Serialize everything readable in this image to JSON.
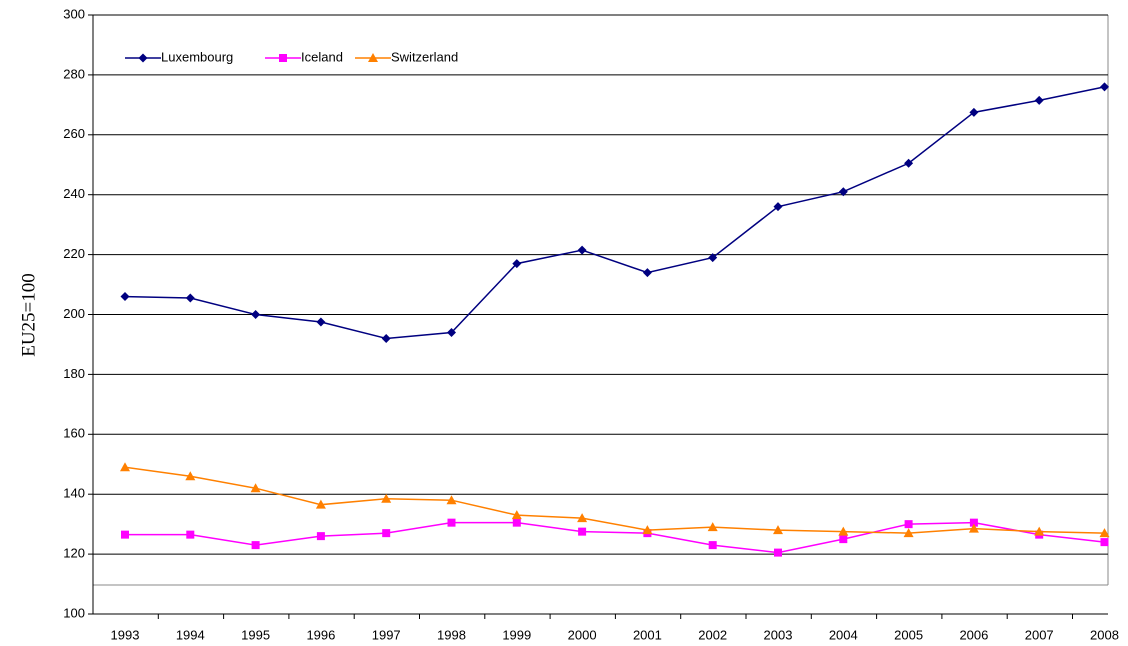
{
  "chart_data": {
    "type": "line",
    "y_label": "EU25=100",
    "categories": [
      "1993",
      "1994",
      "1995",
      "1996",
      "1997",
      "1998",
      "1999",
      "2000",
      "2001",
      "2002",
      "2003",
      "2004",
      "2005",
      "2006",
      "2007",
      "2008"
    ],
    "series": [
      {
        "name": "Luxembourg",
        "color": "#000080",
        "marker": "diamond",
        "values": [
          206,
          205.5,
          200,
          197.5,
          192,
          194,
          217,
          221.5,
          214,
          219,
          236,
          241,
          250.5,
          267.5,
          271.5,
          276
        ]
      },
      {
        "name": "Iceland",
        "color": "#ff00ff",
        "marker": "square",
        "values": [
          126.5,
          126.5,
          123,
          126,
          127,
          130.5,
          130.5,
          127.5,
          127,
          123,
          120.5,
          125,
          130,
          130.5,
          126.5,
          124
        ]
      },
      {
        "name": "Switzerland",
        "color": "#ff8000",
        "marker": "triangle",
        "values": [
          149,
          146,
          142,
          136.5,
          138.5,
          138,
          133,
          132,
          128,
          129,
          128,
          127.5,
          127,
          128.5,
          127.5,
          127
        ]
      }
    ],
    "ylim": [
      100,
      300
    ],
    "yticks": [
      100,
      120,
      140,
      160,
      180,
      200,
      220,
      240,
      260,
      280,
      300
    ],
    "grid": true,
    "legend": "top-left"
  }
}
